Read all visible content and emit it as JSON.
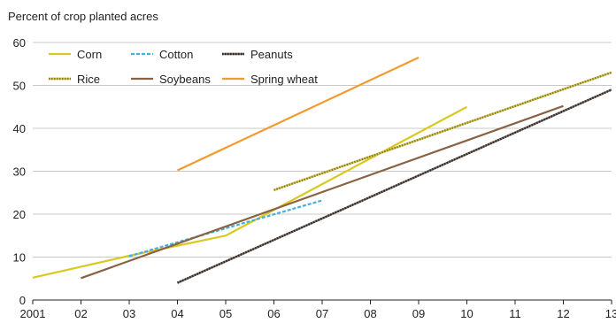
{
  "chart_data": {
    "type": "line",
    "title": "",
    "ylabel": "Percent of crop planted acres",
    "xlabel": "",
    "x_ticks": [
      {
        "value": 2001,
        "label": "2001"
      },
      {
        "value": 2002,
        "label": "02"
      },
      {
        "value": 2003,
        "label": "03"
      },
      {
        "value": 2004,
        "label": "04"
      },
      {
        "value": 2005,
        "label": "05"
      },
      {
        "value": 2006,
        "label": "06"
      },
      {
        "value": 2007,
        "label": "07"
      },
      {
        "value": 2008,
        "label": "08"
      },
      {
        "value": 2009,
        "label": "09"
      },
      {
        "value": 2010,
        "label": "10"
      },
      {
        "value": 2011,
        "label": "11"
      },
      {
        "value": 2012,
        "label": "12"
      },
      {
        "value": 2013,
        "label": "13"
      }
    ],
    "y_ticks": [
      0,
      10,
      20,
      30,
      40,
      50,
      60
    ],
    "xlim": [
      2001,
      2013
    ],
    "ylim": [
      0,
      60
    ],
    "grid": "horizontal",
    "legend_position": "top-left",
    "series": [
      {
        "name": "Corn",
        "color": "#d9c81e",
        "dash": "solid",
        "x": [
          2001,
          2003,
          2005,
          2010
        ],
        "y": [
          5.2,
          10.3,
          15,
          45
        ]
      },
      {
        "name": "Cotton",
        "color": "#3fb0e0",
        "dash": "dashed",
        "x": [
          2003,
          2007
        ],
        "y": [
          10.2,
          23.2
        ]
      },
      {
        "name": "Peanuts",
        "color": "#4a4a4a",
        "dash": "dotted-brown",
        "x": [
          2004,
          2013
        ],
        "y": [
          4,
          49
        ]
      },
      {
        "name": "Rice",
        "color": "#b8a83a",
        "dash": "dotted-olive",
        "x": [
          2006,
          2013
        ],
        "y": [
          25.6,
          53
        ]
      },
      {
        "name": "Soybeans",
        "color": "#8a6243",
        "dash": "solid",
        "x": [
          2002,
          2012
        ],
        "y": [
          5.1,
          45.2
        ]
      },
      {
        "name": "Spring wheat",
        "color": "#f39a2e",
        "dash": "solid",
        "x": [
          2004,
          2009
        ],
        "y": [
          30.2,
          56.5
        ]
      }
    ]
  }
}
